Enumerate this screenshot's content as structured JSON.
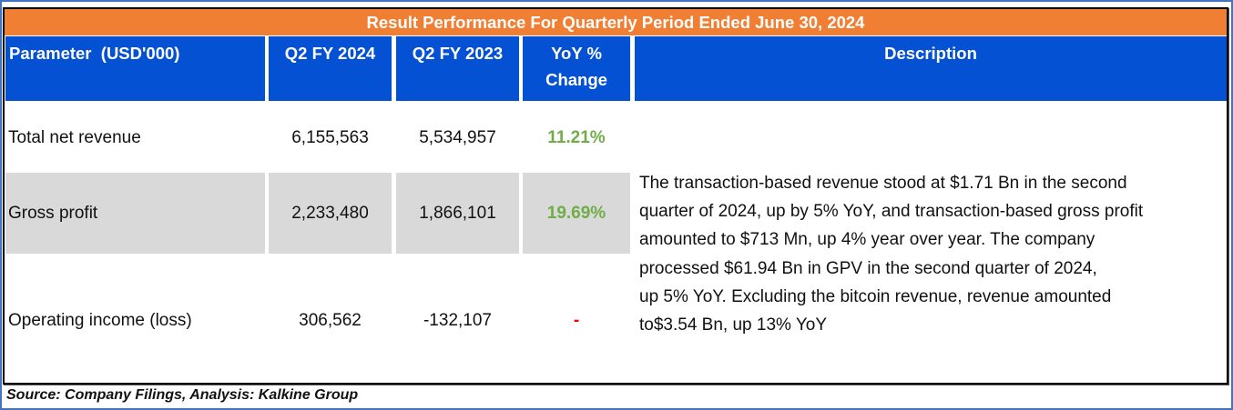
{
  "title": "Result Performance For Quarterly Period Ended June 30, 2024",
  "headers": {
    "parameter": "Parameter  (USD'000)",
    "q2_fy2024": "Q2 FY 2024",
    "q2_fy2023": "Q2 FY 2023",
    "yoy_line1": "YoY %",
    "yoy_line2": "Change",
    "description": "Description"
  },
  "rows": [
    {
      "parameter": "Total net revenue",
      "q2_fy2024": "6,155,563",
      "q2_fy2023": "5,534,957",
      "yoy": "11.21%"
    },
    {
      "parameter": "Gross profit",
      "q2_fy2024": "2,233,480",
      "q2_fy2023": "1,866,101",
      "yoy": "19.69%"
    },
    {
      "parameter": "Operating income (loss)",
      "q2_fy2024": "306,562",
      "q2_fy2023": "-132,107",
      "yoy": "-"
    }
  ],
  "description_lines": [
    "The transaction-based revenue stood at $1.71 Bn in the second",
    "quarter of 2024, up by 5% YoY, and transaction-based gross profit",
    "amounted to $713 Mn, up 4% year over year. The company",
    "processed $61.94 Bn in GPV in the second quarter of 2024,",
    "up 5% YoY. Excluding the bitcoin revenue, revenue amounted",
    "to$3.54 Bn, up 13% YoY"
  ],
  "source": "Source: Company Filings, Analysis: Kalkine Group",
  "colors": {
    "title_bg": "#f07f34",
    "header_bg": "#0451d4",
    "positive": "#70ad47",
    "negative": "#ff0000",
    "shade": "#d9d9d9",
    "frame": "#4472c4"
  }
}
